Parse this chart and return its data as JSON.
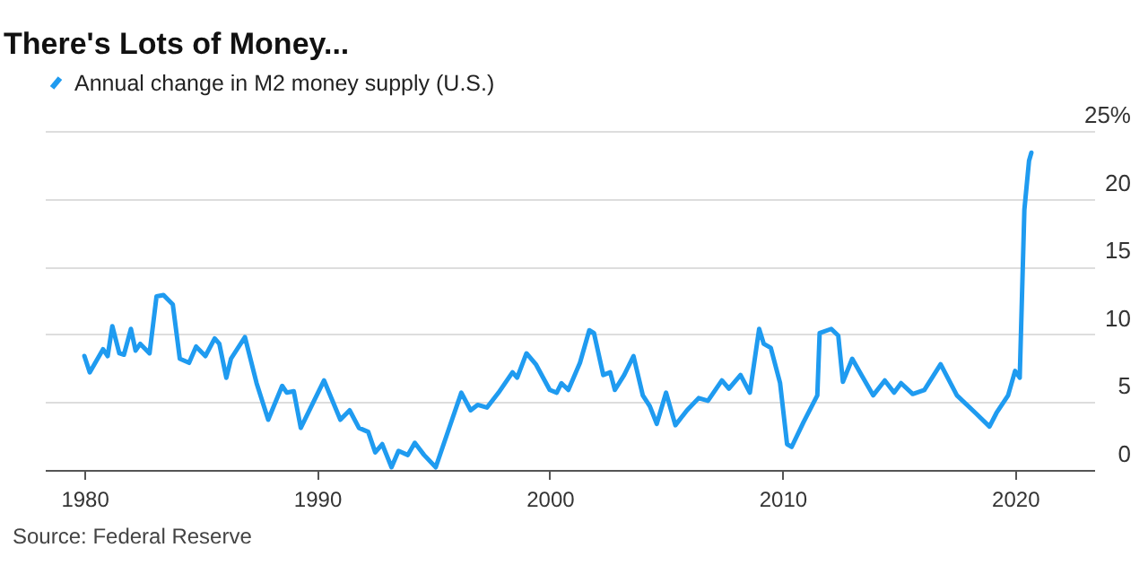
{
  "chart_data": {
    "type": "line",
    "title": "There's Lots of Money...",
    "x": [
      1980.0,
      1980.23,
      1980.8,
      1981.0,
      1981.2,
      1981.5,
      1981.7,
      1982.0,
      1982.2,
      1982.4,
      1982.8,
      1983.1,
      1983.4,
      1983.8,
      1984.1,
      1984.5,
      1984.8,
      1985.2,
      1985.6,
      1985.8,
      1986.1,
      1986.3,
      1986.9,
      1987.4,
      1987.9,
      1988.5,
      1988.7,
      1989.0,
      1989.3,
      1990.3,
      1991.0,
      1991.4,
      1991.8,
      1992.2,
      1992.5,
      1992.8,
      1993.2,
      1993.5,
      1993.9,
      1994.2,
      1994.6,
      1995.1,
      1995.8,
      1996.2,
      1996.6,
      1996.9,
      1997.3,
      1997.8,
      1998.4,
      1998.6,
      1999.0,
      1999.4,
      2000.0,
      2000.3,
      2000.5,
      2000.8,
      2001.3,
      2001.7,
      2001.9,
      2002.3,
      2002.6,
      2002.8,
      2003.2,
      2003.6,
      2004.0,
      2004.3,
      2004.6,
      2005.0,
      2005.4,
      2005.9,
      2006.4,
      2006.8,
      2007.4,
      2007.7,
      2008.2,
      2008.6,
      2009.0,
      2009.2,
      2009.5,
      2009.9,
      2010.2,
      2010.4,
      2010.9,
      2011.5,
      2011.6,
      2012.1,
      2012.4,
      2012.6,
      2013.0,
      2013.4,
      2013.9,
      2014.4,
      2014.8,
      2015.1,
      2015.6,
      2016.1,
      2016.8,
      2017.5,
      2018.3,
      2018.9,
      2019.2,
      2019.7,
      2020.0,
      2020.2,
      2020.4,
      2020.6,
      2020.7
    ],
    "series": [
      {
        "name": "Annual change in M2 money supply (U.S.)",
        "color": "#1f9bf0",
        "values": [
          8.4,
          7.2,
          8.9,
          8.4,
          10.6,
          8.6,
          8.5,
          10.4,
          8.8,
          9.3,
          8.6,
          12.8,
          12.9,
          12.2,
          8.2,
          7.9,
          9.1,
          8.4,
          9.7,
          9.3,
          6.8,
          8.2,
          9.8,
          6.4,
          3.7,
          6.2,
          5.7,
          5.8,
          3.1,
          6.6,
          3.7,
          4.4,
          3.1,
          2.8,
          1.3,
          1.9,
          0.2,
          1.4,
          1.1,
          2.0,
          1.1,
          0.2,
          3.7,
          5.7,
          4.4,
          4.8,
          4.6,
          5.7,
          7.2,
          6.8,
          8.6,
          7.8,
          5.9,
          5.7,
          6.4,
          5.9,
          7.9,
          10.3,
          10.1,
          7.0,
          7.2,
          5.9,
          7.0,
          8.4,
          5.5,
          4.7,
          3.4,
          5.7,
          3.3,
          4.4,
          5.3,
          5.1,
          6.6,
          6.0,
          7.0,
          5.7,
          10.4,
          9.3,
          9.0,
          6.4,
          1.9,
          1.7,
          3.5,
          5.5,
          10.1,
          10.4,
          9.9,
          6.5,
          8.2,
          7.0,
          5.5,
          6.6,
          5.7,
          6.4,
          5.6,
          5.9,
          7.8,
          5.5,
          4.2,
          3.2,
          4.2,
          5.5,
          7.3,
          6.8,
          19.2,
          22.8,
          23.4
        ]
      }
    ],
    "xlim": [
      1978.3,
      2023.4
    ],
    "xticks": [
      1980,
      1990,
      2000,
      2010,
      2020
    ],
    "ylim": [
      0,
      25
    ],
    "yticks": [
      0,
      5,
      10,
      15,
      20,
      {
        "value": 25,
        "label": "25%"
      }
    ],
    "grid": "y",
    "legend": "top left",
    "annotations": [
      "Source: Federal Reserve"
    ]
  }
}
